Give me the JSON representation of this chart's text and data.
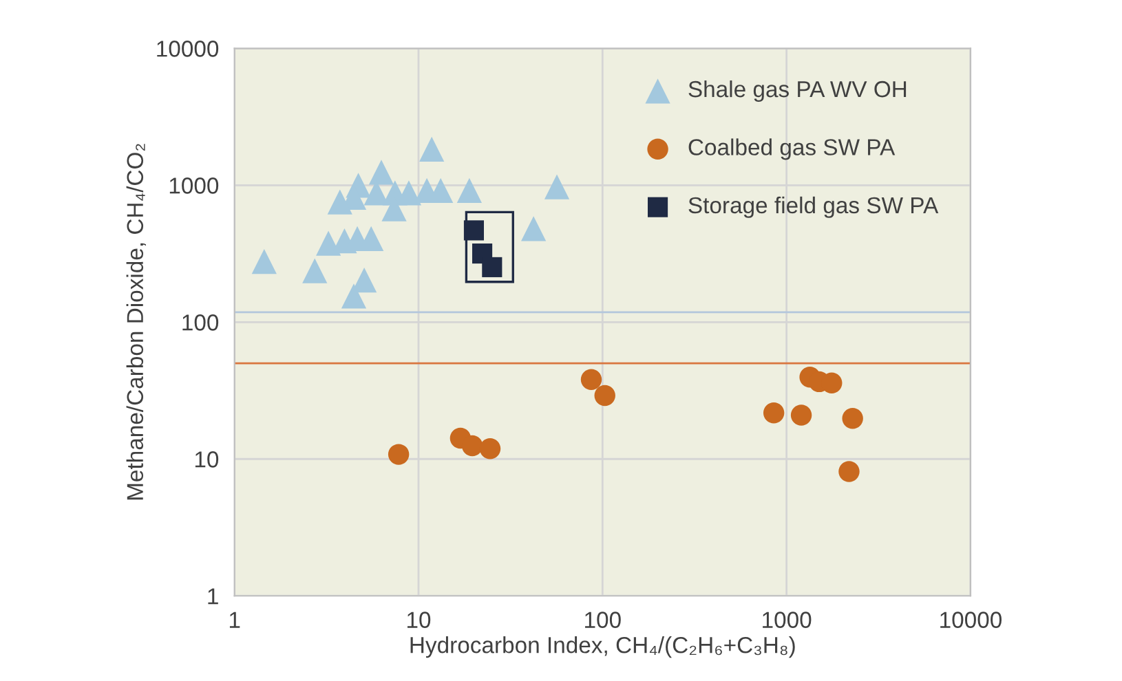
{
  "chart_data": {
    "type": "scatter",
    "xlabel": "Hydrocarbon Index, CH₄/(C₂H₆+C₃H₈)",
    "ylabel": "Methane/Carbon Dioxide, CH₄/CO₂",
    "log": "xy",
    "xlim": [
      1,
      10000
    ],
    "ylim": [
      1,
      10000
    ],
    "xticks": [
      1,
      10,
      100,
      1000,
      10000
    ],
    "yticks": [
      1,
      10,
      100,
      1000,
      10000
    ],
    "grid": true,
    "legend": "top right",
    "ref_lines": [
      {
        "axis": "y",
        "value": 50,
        "color": "#d9763f"
      },
      {
        "axis": "y",
        "value": 118,
        "color": "#b4c7dc"
      }
    ],
    "series": [
      {
        "name": "Shale gas PA WV OH",
        "color": "#a3c8de",
        "marker": "triangle",
        "x": [
          1.45,
          2.73,
          4.45,
          5.07,
          3.24,
          3.96,
          4.65,
          5.53,
          4.71,
          6.28,
          7.45,
          7.37,
          11.1,
          13.2,
          11.8,
          18.9,
          42.2,
          56.5,
          5.9,
          8.86,
          4.45,
          3.74
        ],
        "values": [
          277,
          237,
          155,
          203,
          377,
          392,
          407,
          407,
          1000,
          1245,
          880,
          671,
          916,
          916,
          1832,
          916,
          482,
          973,
          880,
          880,
          815,
          754
        ]
      },
      {
        "name": "Coalbed gas SW PA",
        "color": "#c9691f",
        "marker": "circle",
        "x": [
          7.8,
          16.9,
          19.6,
          24.5,
          86.9,
          103,
          1340,
          1506,
          1760,
          853,
          1203,
          2287,
          2187
        ],
        "values": [
          10.8,
          14.2,
          12.5,
          11.9,
          38.1,
          29.1,
          39.6,
          36.7,
          35.9,
          21.7,
          20.9,
          19.8,
          8.1
        ]
      },
      {
        "name": "Storage field gas SW PA",
        "color": "#1f2a44",
        "marker": "square",
        "x": [
          20.0,
          22.2,
          25.1
        ],
        "values": [
          468,
          317,
          252
        ]
      }
    ]
  }
}
